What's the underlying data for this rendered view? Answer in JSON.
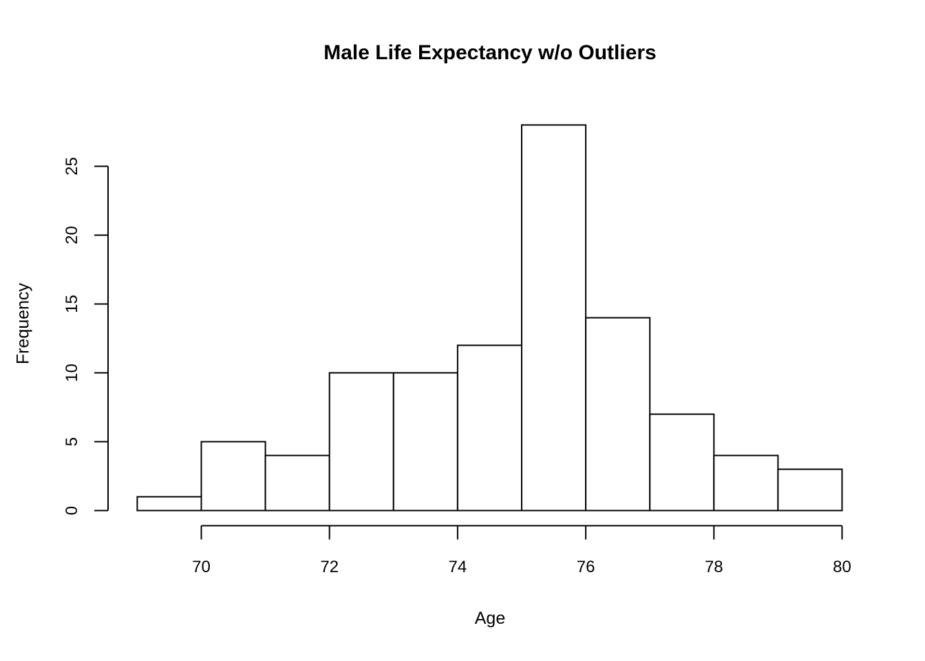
{
  "figure": {
    "background_color": "#ffffff",
    "foreground_color": "#000000"
  },
  "chart_data": {
    "type": "bar",
    "subtype": "histogram",
    "title": "Male Life Expectancy w/o Outliers",
    "xlabel": "Age",
    "ylabel": "Frequency",
    "bin_breaks": [
      69,
      70,
      71,
      72,
      73,
      74,
      75,
      76,
      77,
      78,
      79,
      80
    ],
    "counts": [
      1,
      5,
      4,
      10,
      10,
      12,
      28,
      14,
      7,
      4,
      3
    ],
    "x_tick_values": [
      70,
      72,
      74,
      76,
      78,
      80
    ],
    "x_tick_labels": [
      "70",
      "72",
      "74",
      "76",
      "78",
      "80"
    ],
    "y_tick_values": [
      0,
      5,
      10,
      15,
      20,
      25
    ],
    "y_tick_labels": [
      "0",
      "5",
      "10",
      "15",
      "20",
      "25"
    ],
    "xlim": [
      69,
      80
    ],
    "ylim": [
      0,
      28
    ],
    "grid": false,
    "legend": "none",
    "bar_fill": "#ffffff",
    "bar_stroke": "#000000",
    "axis_color": "#000000"
  }
}
